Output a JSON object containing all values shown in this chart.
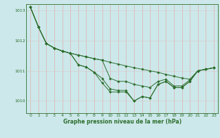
{
  "xlabel": "Graphe pression niveau de la mer (hPa)",
  "ylim": [
    1009.6,
    1013.2
  ],
  "xlim": [
    -0.5,
    23.5
  ],
  "yticks": [
    1010,
    1011,
    1012,
    1013
  ],
  "xticks": [
    0,
    1,
    2,
    3,
    4,
    5,
    6,
    7,
    8,
    9,
    10,
    11,
    12,
    13,
    14,
    15,
    16,
    17,
    18,
    19,
    20,
    21,
    22,
    23
  ],
  "background_color": "#cce8ea",
  "grid_color_v": "#e8a0a0",
  "grid_color_h": "#d8c8c8",
  "line_color": "#2d6e2d",
  "lines": [
    [
      1013.1,
      1012.45,
      1011.9,
      1011.75,
      1011.65,
      1011.58,
      1011.52,
      1011.46,
      1011.4,
      1011.35,
      1011.28,
      1011.22,
      1011.16,
      1011.1,
      1011.05,
      1011.0,
      1010.95,
      1010.88,
      1010.82,
      1010.76,
      1010.72,
      1011.0,
      1011.05,
      1011.1
    ],
    [
      1013.1,
      1012.45,
      1011.9,
      1011.75,
      1011.65,
      1011.58,
      1011.52,
      1011.46,
      1011.4,
      1011.35,
      1010.75,
      1010.65,
      1010.65,
      1010.55,
      1010.5,
      1010.45,
      1010.65,
      1010.72,
      1010.5,
      1010.5,
      1010.7,
      1011.0,
      1011.05,
      1011.1
    ],
    [
      1013.1,
      1012.45,
      1011.9,
      1011.75,
      1011.65,
      1011.58,
      1011.2,
      1011.12,
      1010.95,
      1010.75,
      1010.4,
      1010.35,
      1010.35,
      1010.0,
      1010.15,
      1010.1,
      1010.55,
      1010.65,
      1010.45,
      1010.45,
      1010.65,
      1011.0,
      1011.05,
      1011.1
    ],
    [
      1013.1,
      1012.45,
      1011.9,
      1011.75,
      1011.65,
      1011.58,
      1011.2,
      1011.12,
      1010.95,
      1010.6,
      1010.3,
      1010.3,
      1010.3,
      1010.0,
      1010.15,
      1010.1,
      1010.55,
      1010.65,
      1010.45,
      1010.45,
      1010.65,
      1011.0,
      1011.05,
      1011.1
    ]
  ]
}
